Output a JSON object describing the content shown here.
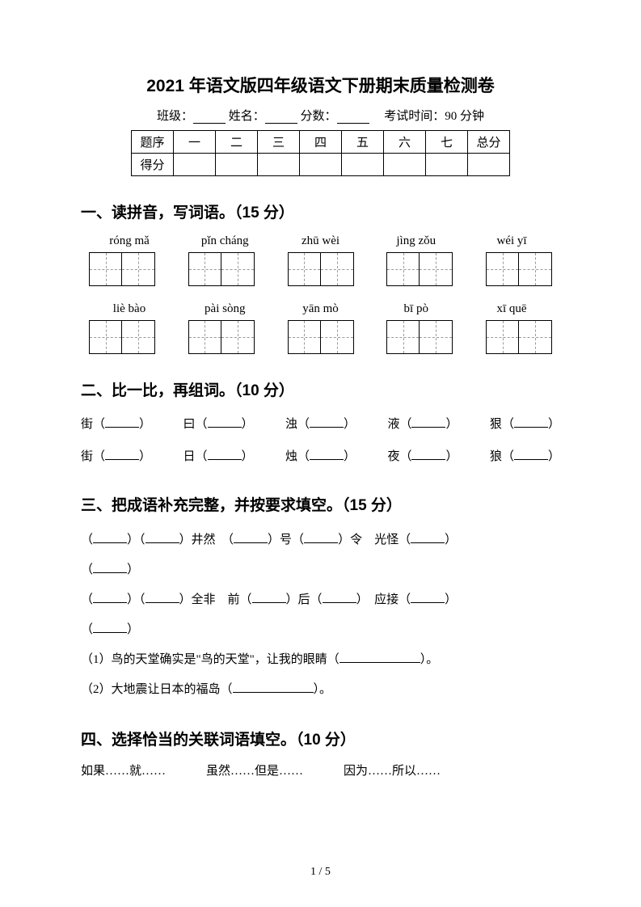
{
  "title": "2021 年语文版四年级语文下册期末质量检测卷",
  "info": {
    "class_label": "班级：",
    "name_label": "姓名：",
    "score_label": "分数：",
    "time_label": "考试时间：90 分钟"
  },
  "score_table": {
    "row1": [
      "题序",
      "一",
      "二",
      "三",
      "四",
      "五",
      "六",
      "七",
      "总分"
    ],
    "row2_label": "得分"
  },
  "section1": {
    "title": "一、读拼音，写词语。（15 分）",
    "pinyin_row1": [
      "róng mǎ",
      "pǐn cháng",
      "zhū wèi",
      "jìng zǒu",
      "wéi yī"
    ],
    "pinyin_row2": [
      "liè bào",
      "pài sòng",
      "yān mò",
      "bī pò",
      "xī quē"
    ]
  },
  "section2": {
    "title": "二、比一比，再组词。（10 分）",
    "row1": [
      "街",
      "曰",
      "浊",
      "液",
      "狠"
    ],
    "row2": [
      "街",
      "日",
      "烛",
      "夜",
      "狼"
    ]
  },
  "section3": {
    "title": "三、把成语补充完整，并按要求填空。（15 分）",
    "line1_parts": [
      "（",
      "）（",
      "）井然　（",
      "）号（",
      "）令　光怪（",
      "）（",
      "）"
    ],
    "line2_parts": [
      "（",
      "）（",
      "）全非　前（",
      "）后（",
      "）　应接（",
      "）（",
      "）"
    ],
    "q1_prefix": "（1）鸟的天堂确实是\"鸟的天堂\"，让我的眼睛（",
    "q1_suffix": "）。",
    "q2_prefix": "（2）大地震让日本的福岛（",
    "q2_suffix": "）。"
  },
  "section4": {
    "title": "四、选择恰当的关联词语填空。（10 分）",
    "options": [
      "如果……就……",
      "虽然……但是……",
      "因为……所以……"
    ]
  },
  "page_num": "1 / 5"
}
